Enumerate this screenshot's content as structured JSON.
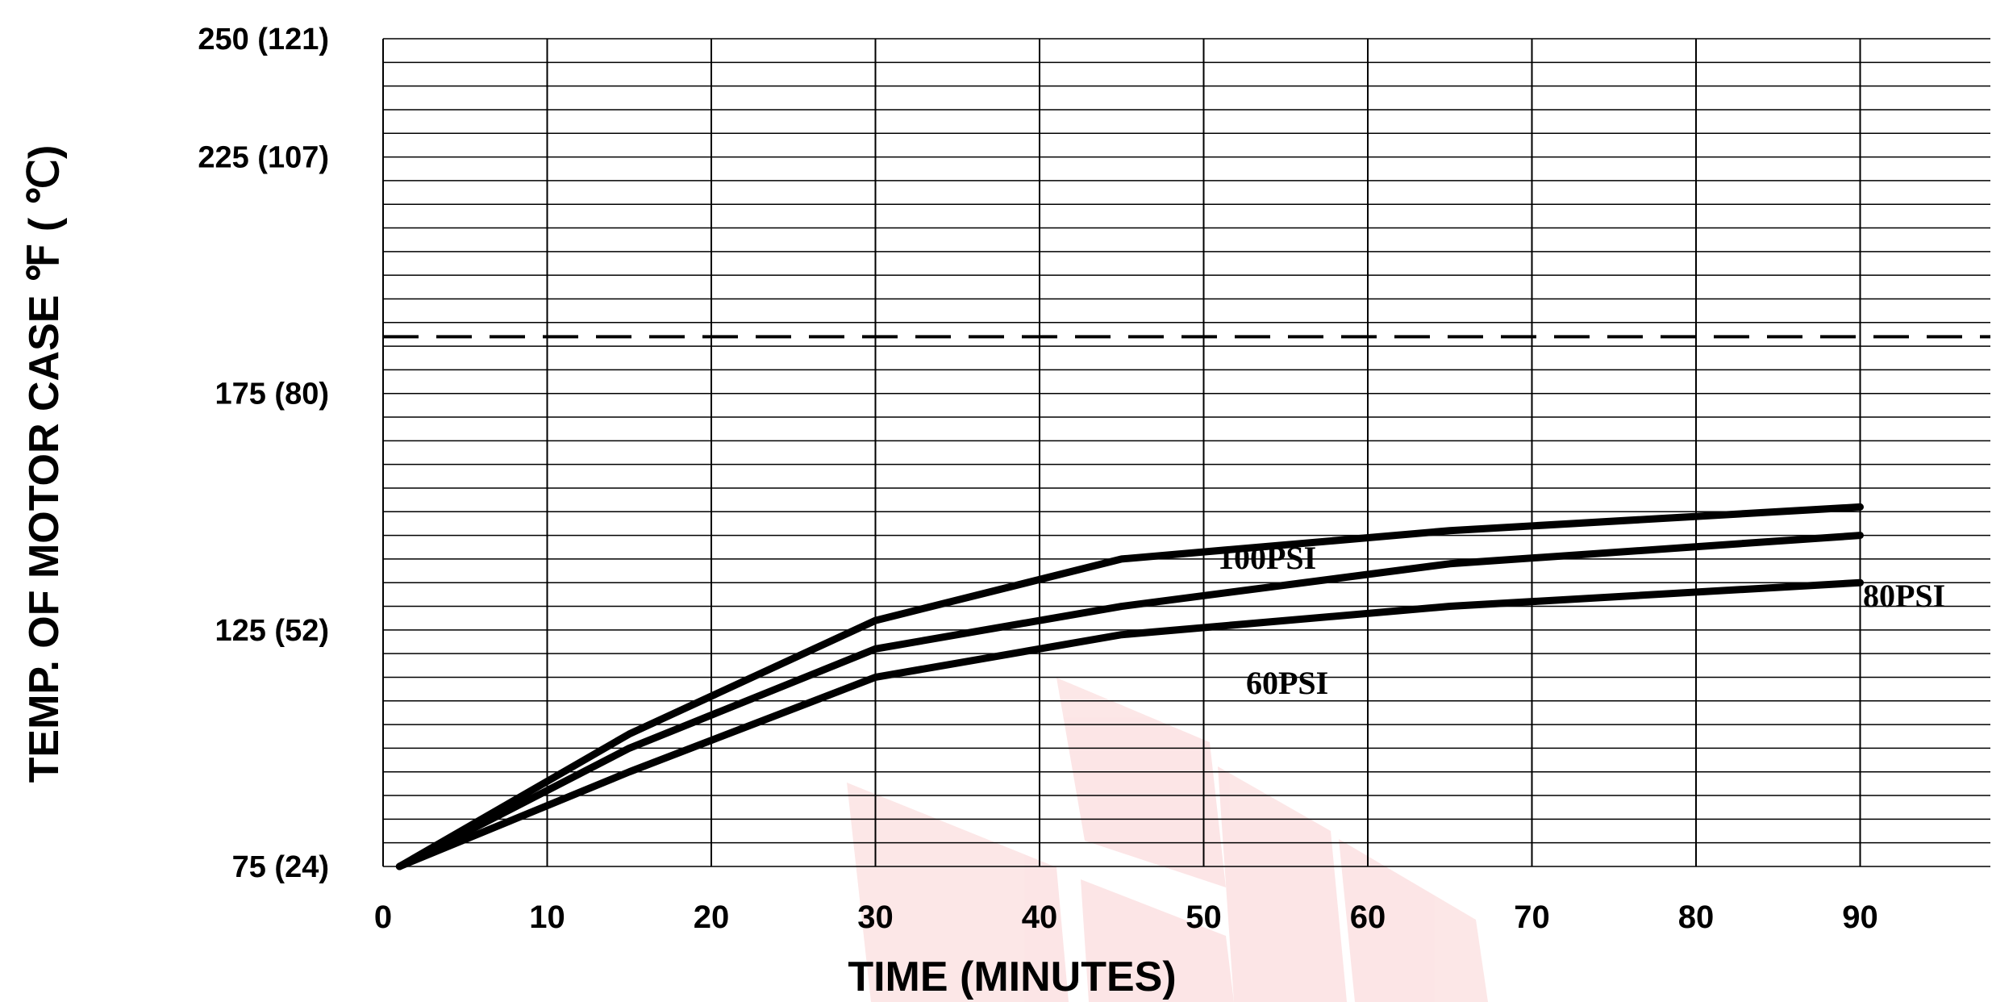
{
  "chart_data": {
    "type": "line",
    "xlabel": "TIME (MINUTES)",
    "ylabel": "TEMP. OF MOTOR CASE    ℉  (  ℃)",
    "xlim": [
      0,
      98
    ],
    "ylim": [
      75,
      250
    ],
    "x_ticks": [
      {
        "value": 0,
        "label": "0"
      },
      {
        "value": 10,
        "label": "10"
      },
      {
        "value": 20,
        "label": "20"
      },
      {
        "value": 30,
        "label": "30"
      },
      {
        "value": 40,
        "label": "40"
      },
      {
        "value": 50,
        "label": "50"
      },
      {
        "value": 60,
        "label": "60"
      },
      {
        "value": 70,
        "label": "70"
      },
      {
        "value": 80,
        "label": "80"
      },
      {
        "value": 90,
        "label": "90"
      }
    ],
    "y_ticks": [
      {
        "value": 250,
        "label": "250 (121)"
      },
      {
        "value": 225,
        "label": "225 (107)"
      },
      {
        "value": 175,
        "label": "175  (80)"
      },
      {
        "value": 125,
        "label": "125  (52)"
      },
      {
        "value": 75,
        "label": "75  (24)"
      }
    ],
    "grid": true,
    "y_minor_step": 5,
    "limit_line": {
      "y": 187,
      "style": "dashed"
    },
    "series": [
      {
        "name": "100PSI",
        "x": [
          1,
          15,
          30,
          45,
          65,
          90
        ],
        "y": [
          75,
          103,
          127,
          140,
          146,
          151
        ]
      },
      {
        "name": "80PSI",
        "x": [
          1,
          15,
          30,
          45,
          65,
          90
        ],
        "y": [
          75,
          100,
          121,
          130,
          139,
          145
        ]
      },
      {
        "name": "60PSI",
        "x": [
          1,
          15,
          30,
          45,
          65,
          90
        ],
        "y": [
          75,
          95,
          115,
          124,
          130,
          135
        ]
      }
    ]
  }
}
